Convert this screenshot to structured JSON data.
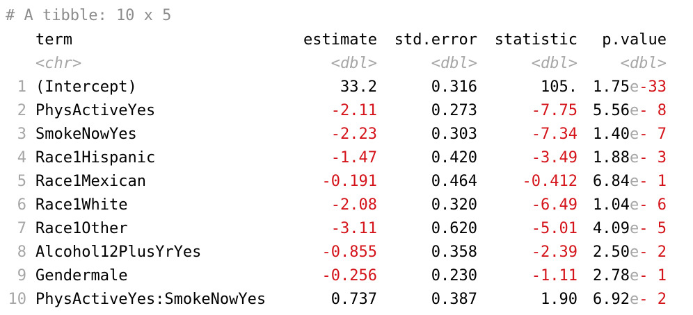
{
  "comment": "# A tibble: 10 x 5",
  "columns": {
    "term": "term",
    "estimate": "estimate",
    "std_error": "std.error",
    "statistic": "statistic",
    "p_value": "p.value"
  },
  "types": {
    "term": "<chr>",
    "estimate": "<dbl>",
    "std_error": "<dbl>",
    "statistic": "<dbl>",
    "p_value": "<dbl>"
  },
  "rows": [
    {
      "n": "1",
      "term": "(Intercept)",
      "est_sign": "",
      "est_val": "33.2",
      "se": "0.316",
      "stat_sign": "",
      "stat_val": "105.",
      "p_mant": "1.75",
      "p_e": "e",
      "p_exp": "-33"
    },
    {
      "n": "2",
      "term": "PhysActiveYes",
      "est_sign": "-",
      "est_val": "2.11",
      "se": "0.273",
      "stat_sign": "-",
      "stat_val": "7.75",
      "p_mant": "5.56",
      "p_e": "e",
      "p_exp": "- 8"
    },
    {
      "n": "3",
      "term": "SmokeNowYes",
      "est_sign": "-",
      "est_val": "2.23",
      "se": "0.303",
      "stat_sign": "-",
      "stat_val": "7.34",
      "p_mant": "1.40",
      "p_e": "e",
      "p_exp": "- 7"
    },
    {
      "n": "4",
      "term": "Race1Hispanic",
      "est_sign": "-",
      "est_val": "1.47",
      "se": "0.420",
      "stat_sign": "-",
      "stat_val": "3.49",
      "p_mant": "1.88",
      "p_e": "e",
      "p_exp": "- 3"
    },
    {
      "n": "5",
      "term": "Race1Mexican",
      "est_sign": "-",
      "est_val": "0.191",
      "se": "0.464",
      "stat_sign": "-",
      "stat_val": "0.412",
      "p_mant": "6.84",
      "p_e": "e",
      "p_exp": "- 1"
    },
    {
      "n": "6",
      "term": "Race1White",
      "est_sign": "-",
      "est_val": "2.08",
      "se": "0.320",
      "stat_sign": "-",
      "stat_val": "6.49",
      "p_mant": "1.04",
      "p_e": "e",
      "p_exp": "- 6"
    },
    {
      "n": "7",
      "term": "Race1Other",
      "est_sign": "-",
      "est_val": "3.11",
      "se": "0.620",
      "stat_sign": "-",
      "stat_val": "5.01",
      "p_mant": "4.09",
      "p_e": "e",
      "p_exp": "- 5"
    },
    {
      "n": "8",
      "term": "Alcohol12PlusYrYes",
      "est_sign": "-",
      "est_val": "0.855",
      "se": "0.358",
      "stat_sign": "-",
      "stat_val": "2.39",
      "p_mant": "2.50",
      "p_e": "e",
      "p_exp": "- 2"
    },
    {
      "n": "9",
      "term": "Gendermale",
      "est_sign": "-",
      "est_val": "0.256",
      "se": "0.230",
      "stat_sign": "-",
      "stat_val": "1.11",
      "p_mant": "2.78",
      "p_e": "e",
      "p_exp": "- 1"
    },
    {
      "n": "10",
      "term": "PhysActiveYes:SmokeNowYes",
      "est_sign": "",
      "est_val": "0.737",
      "se": "0.387",
      "stat_sign": "",
      "stat_val": "1.90",
      "p_mant": "6.92",
      "p_e": "e",
      "p_exp": "- 2"
    }
  ],
  "colors": {
    "negative": "#d4141a",
    "muted": "#a6a6a6",
    "comment": "#8c8c8c"
  }
}
